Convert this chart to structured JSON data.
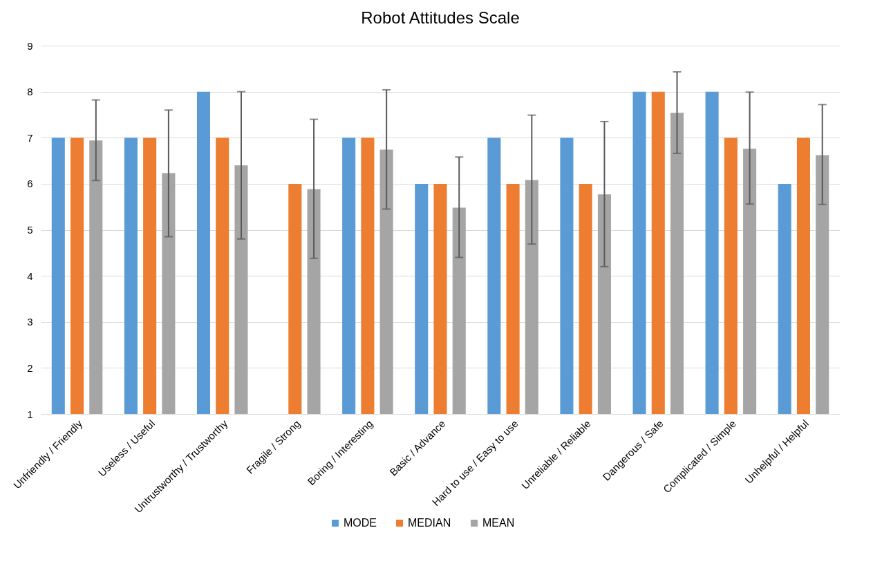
{
  "chart_data": {
    "type": "bar",
    "title": "Robot Attitudes Scale",
    "categories": [
      "Unfriendly / Friendly",
      "Useless / Useful",
      "Untrustworthy / Trustworthy",
      "Fragile / Strong",
      "Boring / Interesting",
      "Basic / Advance",
      "Hard to use / Easy to use",
      "Unreliable / Reliable",
      "Dangerous / Safe",
      "Complicated / Simple",
      "Unhelpful / Helpful"
    ],
    "series": [
      {
        "name": "MODE",
        "color": "#5b9bd5",
        "values": [
          7,
          7,
          8,
          1,
          7,
          6,
          7,
          7,
          8,
          8,
          6
        ]
      },
      {
        "name": "MEDIAN",
        "color": "#ed7d31",
        "values": [
          7,
          7,
          7,
          6,
          7,
          6,
          6,
          6,
          8,
          7,
          7
        ]
      },
      {
        "name": "MEAN",
        "color": "#a5a5a5",
        "values": [
          6.94,
          6.23,
          6.4,
          5.88,
          6.74,
          5.48,
          6.08,
          5.77,
          7.54,
          6.76,
          6.62
        ],
        "errors": [
          [
            6.07,
            7.82
          ],
          [
            4.85,
            7.6
          ],
          [
            4.8,
            8.0
          ],
          [
            4.38,
            7.4
          ],
          [
            5.45,
            8.04
          ],
          [
            4.4,
            6.58
          ],
          [
            4.69,
            7.49
          ],
          [
            4.2,
            7.35
          ],
          [
            6.66,
            8.43
          ],
          [
            5.56,
            7.99
          ],
          [
            5.55,
            7.72
          ]
        ]
      }
    ],
    "ylim": [
      1,
      9
    ],
    "yticks": [
      1,
      2,
      3,
      4,
      5,
      6,
      7,
      8,
      9
    ],
    "grid": "y",
    "legend": "bottom"
  }
}
